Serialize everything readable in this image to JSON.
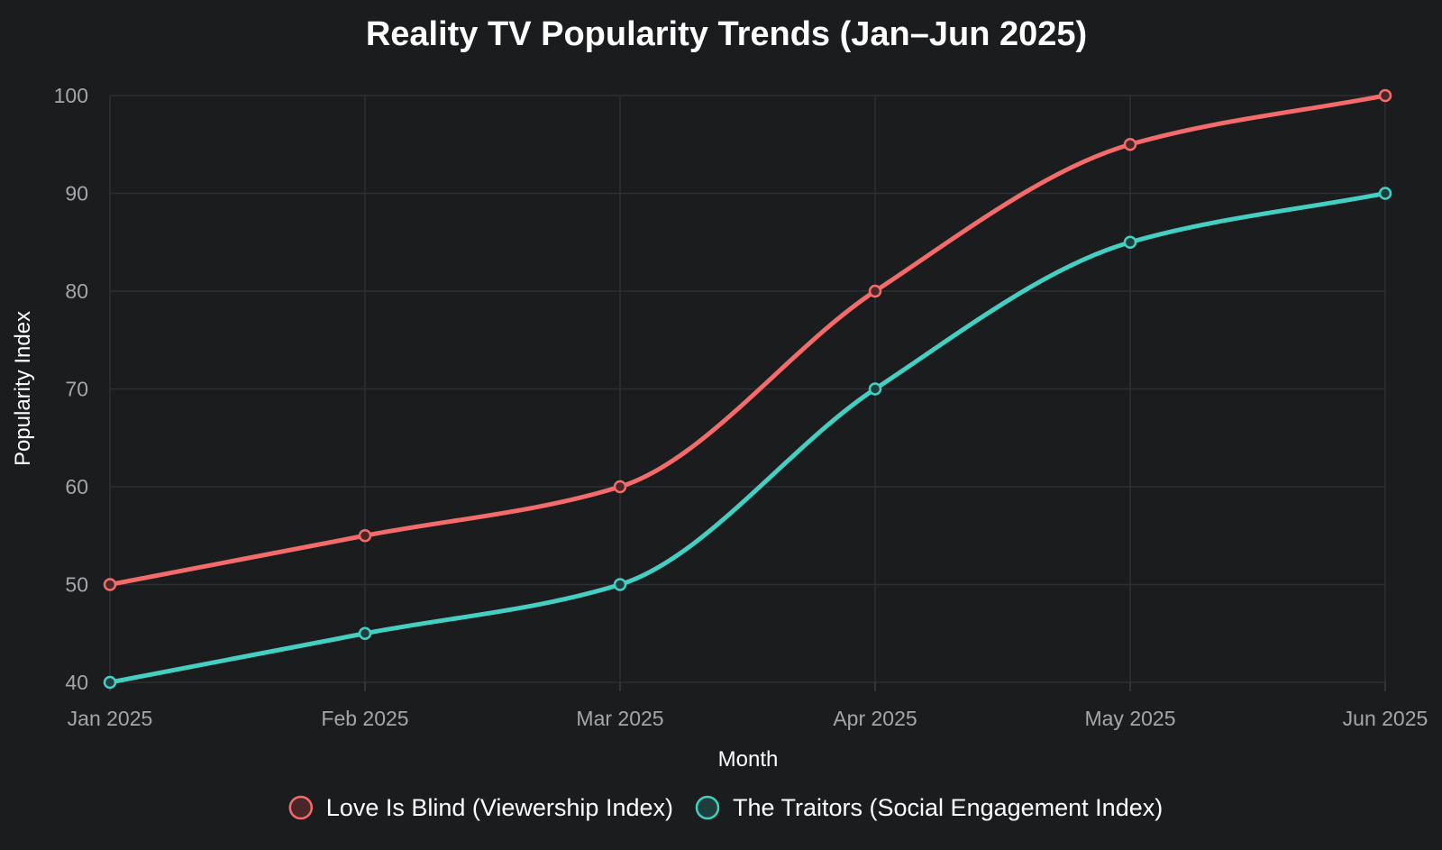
{
  "chart_data": {
    "type": "line",
    "title": "Reality TV Popularity Trends (Jan–Jun 2025)",
    "xlabel": "Month",
    "ylabel": "Popularity Index",
    "categories": [
      "Jan 2025",
      "Feb 2025",
      "Mar 2025",
      "Apr 2025",
      "May 2025",
      "Jun 2025"
    ],
    "ylim": [
      40,
      100
    ],
    "yticks": [
      40,
      50,
      60,
      70,
      80,
      90,
      100
    ],
    "grid": true,
    "legend_position": "bottom",
    "series": [
      {
        "name": "Love Is Blind (Viewership Index)",
        "values": [
          50,
          55,
          60,
          80,
          95,
          100
        ],
        "color": "#f46b6b",
        "marker_fill": "#4a2629"
      },
      {
        "name": "The Traitors (Social Engagement Index)",
        "values": [
          40,
          45,
          50,
          70,
          85,
          90
        ],
        "color": "#45cfc2",
        "marker_fill": "#1e3d3d"
      }
    ]
  }
}
